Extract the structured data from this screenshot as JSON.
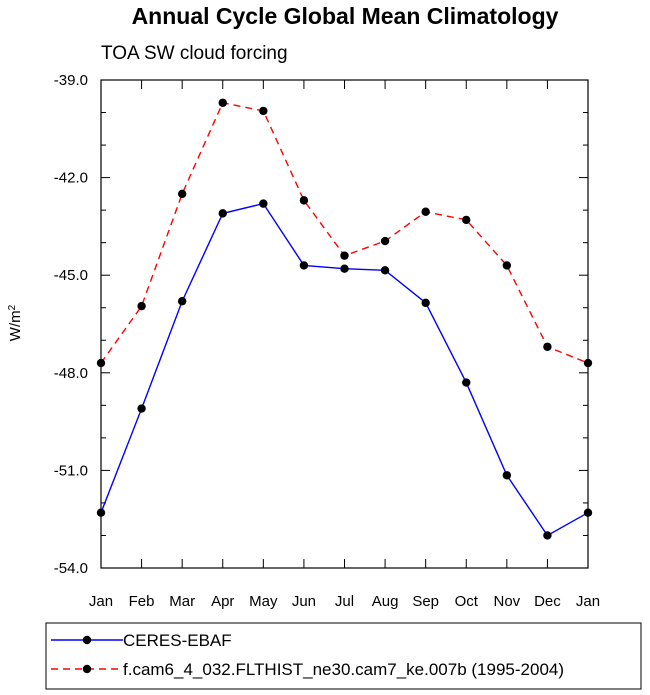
{
  "chart_data": {
    "type": "line",
    "title": "Annual Cycle Global Mean Climatology",
    "subtitle": "TOA SW cloud forcing",
    "xlabel": "",
    "ylabel": "W/m",
    "ylabel_superscript": "2",
    "categories": [
      "Jan",
      "Feb",
      "Mar",
      "Apr",
      "May",
      "Jun",
      "Jul",
      "Aug",
      "Sep",
      "Oct",
      "Nov",
      "Dec",
      "Jan"
    ],
    "ylim": [
      -54.0,
      -39.0
    ],
    "yticks": [
      -39.0,
      -42.0,
      -45.0,
      -48.0,
      -51.0,
      -54.0
    ],
    "ytick_labels": [
      "-39.0",
      "-42.0",
      "-45.0",
      "-48.0",
      "-51.0",
      "-54.0"
    ],
    "grid": false,
    "legend_position": "bottom",
    "series": [
      {
        "name": "CERES-EBAF",
        "color": "#0000ff",
        "style": "solid",
        "values": [
          -52.3,
          -49.1,
          -45.8,
          -43.1,
          -42.8,
          -44.7,
          -44.8,
          -44.85,
          -45.85,
          -48.3,
          -51.15,
          -53.0,
          -52.3
        ]
      },
      {
        "name": "f.cam6_4_032.FLTHIST_ne30.cam7_ke.007b (1995-2004)",
        "color": "#ff0000",
        "style": "dashed",
        "values": [
          -47.7,
          -45.95,
          -42.5,
          -39.7,
          -39.95,
          -42.7,
          -44.4,
          -43.95,
          -43.05,
          -43.3,
          -44.7,
          -47.2,
          -47.7
        ]
      }
    ]
  }
}
